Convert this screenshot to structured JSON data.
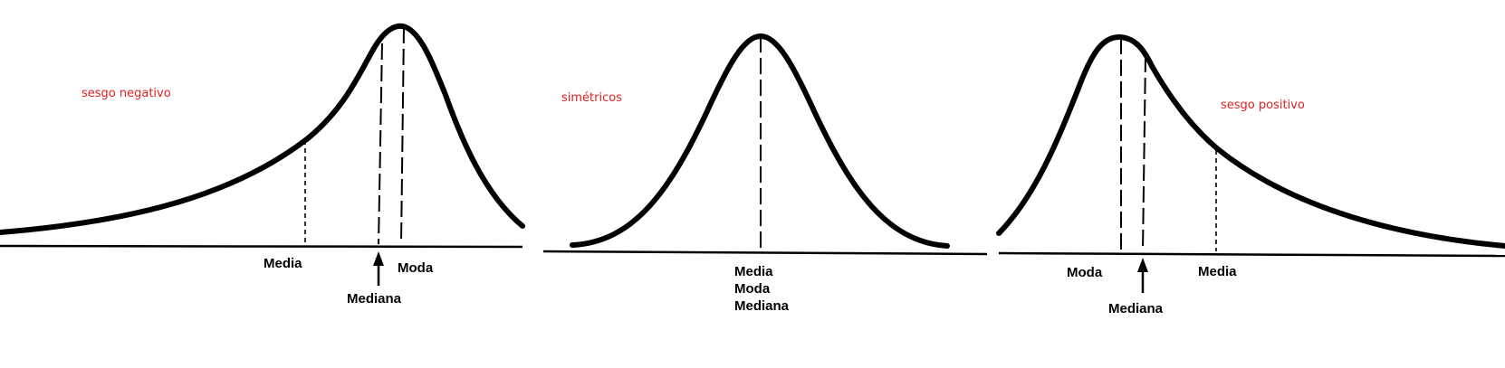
{
  "panels": [
    {
      "caption": "sesgo negativo",
      "labels": {
        "media": "Media",
        "moda": "Moda",
        "mediana": "Mediana"
      }
    },
    {
      "caption": "simétricos",
      "labels": {
        "media": "Media",
        "moda": "Moda",
        "mediana": "Mediana"
      }
    },
    {
      "caption": "sesgo positivo",
      "labels": {
        "moda": "Moda",
        "media": "Media",
        "mediana": "Mediana"
      }
    }
  ]
}
